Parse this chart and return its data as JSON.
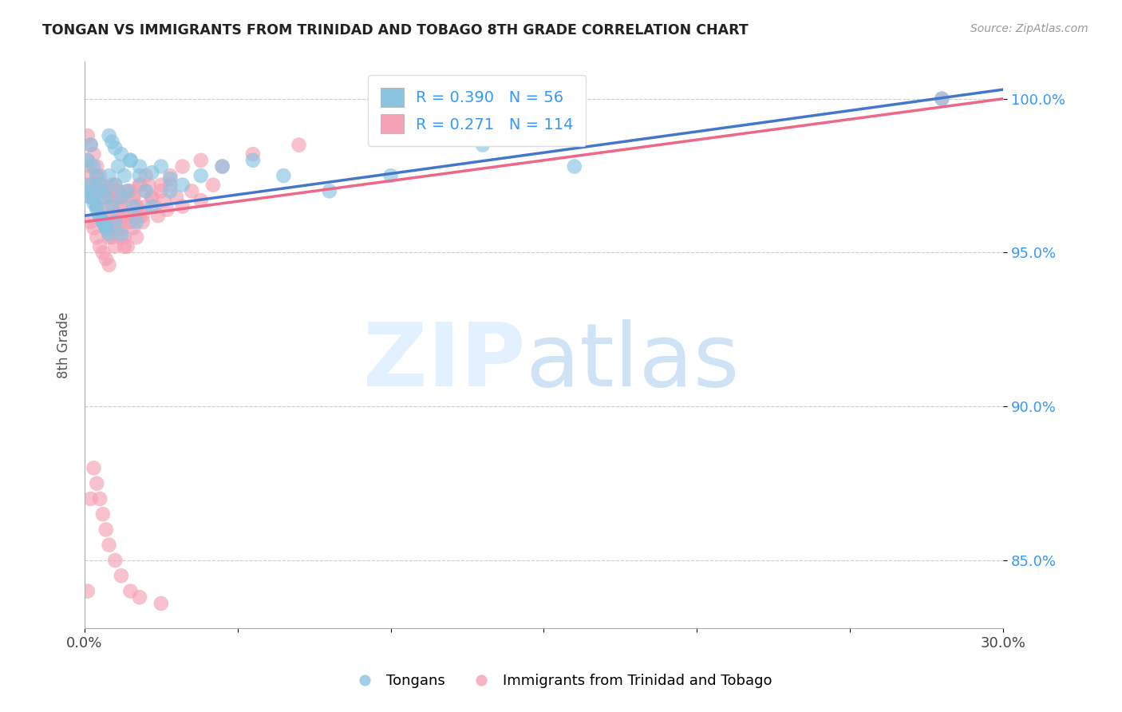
{
  "title": "TONGAN VS IMMIGRANTS FROM TRINIDAD AND TOBAGO 8TH GRADE CORRELATION CHART",
  "source": "Source: ZipAtlas.com",
  "ylabel": "8th Grade",
  "ytick_values": [
    0.85,
    0.9,
    0.95,
    1.0
  ],
  "xlim": [
    0.0,
    0.3
  ],
  "ylim": [
    0.828,
    1.012
  ],
  "blue_color": "#89c4e1",
  "pink_color": "#f4a0b5",
  "blue_line_color": "#4477cc",
  "pink_line_color": "#ee6688",
  "legend_R_blue": "0.390",
  "legend_N_blue": "56",
  "legend_R_pink": "0.271",
  "legend_N_pink": "114",
  "blue_x": [
    0.001,
    0.002,
    0.002,
    0.003,
    0.003,
    0.004,
    0.004,
    0.005,
    0.005,
    0.006,
    0.006,
    0.007,
    0.007,
    0.008,
    0.008,
    0.009,
    0.01,
    0.01,
    0.011,
    0.012,
    0.012,
    0.013,
    0.014,
    0.015,
    0.016,
    0.017,
    0.018,
    0.02,
    0.022,
    0.025,
    0.028,
    0.032,
    0.038,
    0.045,
    0.055,
    0.065,
    0.08,
    0.1,
    0.13,
    0.16,
    0.001,
    0.002,
    0.003,
    0.004,
    0.005,
    0.006,
    0.007,
    0.008,
    0.009,
    0.01,
    0.012,
    0.015,
    0.018,
    0.022,
    0.028,
    0.28
  ],
  "blue_y": [
    0.98,
    0.985,
    0.972,
    0.978,
    0.968,
    0.975,
    0.965,
    0.972,
    0.962,
    0.97,
    0.96,
    0.968,
    0.958,
    0.975,
    0.956,
    0.965,
    0.972,
    0.96,
    0.978,
    0.968,
    0.956,
    0.975,
    0.97,
    0.98,
    0.965,
    0.96,
    0.975,
    0.97,
    0.965,
    0.978,
    0.97,
    0.972,
    0.975,
    0.978,
    0.98,
    0.975,
    0.97,
    0.975,
    0.985,
    0.978,
    0.97,
    0.968,
    0.966,
    0.964,
    0.962,
    0.96,
    0.958,
    0.988,
    0.986,
    0.984,
    0.982,
    0.98,
    0.978,
    0.976,
    0.974,
    1.0
  ],
  "pink_x": [
    0.001,
    0.001,
    0.002,
    0.002,
    0.002,
    0.003,
    0.003,
    0.003,
    0.004,
    0.004,
    0.004,
    0.005,
    0.005,
    0.005,
    0.006,
    0.006,
    0.006,
    0.007,
    0.007,
    0.007,
    0.008,
    0.008,
    0.008,
    0.009,
    0.009,
    0.01,
    0.01,
    0.01,
    0.011,
    0.011,
    0.012,
    0.012,
    0.013,
    0.013,
    0.014,
    0.014,
    0.015,
    0.015,
    0.016,
    0.016,
    0.017,
    0.017,
    0.018,
    0.018,
    0.019,
    0.02,
    0.02,
    0.021,
    0.022,
    0.023,
    0.024,
    0.025,
    0.026,
    0.027,
    0.028,
    0.03,
    0.032,
    0.035,
    0.038,
    0.042,
    0.001,
    0.002,
    0.002,
    0.003,
    0.003,
    0.004,
    0.004,
    0.005,
    0.005,
    0.006,
    0.006,
    0.007,
    0.007,
    0.008,
    0.008,
    0.009,
    0.009,
    0.01,
    0.01,
    0.011,
    0.011,
    0.012,
    0.012,
    0.013,
    0.013,
    0.014,
    0.015,
    0.016,
    0.017,
    0.018,
    0.019,
    0.02,
    0.022,
    0.025,
    0.028,
    0.032,
    0.038,
    0.045,
    0.055,
    0.07,
    0.001,
    0.002,
    0.003,
    0.004,
    0.005,
    0.006,
    0.007,
    0.008,
    0.01,
    0.012,
    0.015,
    0.018,
    0.025,
    0.28
  ],
  "pink_y": [
    0.988,
    0.972,
    0.985,
    0.968,
    0.96,
    0.982,
    0.97,
    0.958,
    0.978,
    0.965,
    0.955,
    0.975,
    0.962,
    0.952,
    0.972,
    0.96,
    0.95,
    0.97,
    0.958,
    0.948,
    0.968,
    0.956,
    0.946,
    0.965,
    0.955,
    0.972,
    0.962,
    0.952,
    0.97,
    0.96,
    0.968,
    0.958,
    0.965,
    0.955,
    0.962,
    0.952,
    0.97,
    0.96,
    0.968,
    0.958,
    0.965,
    0.955,
    0.972,
    0.962,
    0.96,
    0.975,
    0.965,
    0.972,
    0.968,
    0.965,
    0.962,
    0.97,
    0.967,
    0.964,
    0.972,
    0.968,
    0.965,
    0.97,
    0.967,
    0.972,
    0.98,
    0.978,
    0.975,
    0.972,
    0.968,
    0.975,
    0.965,
    0.972,
    0.962,
    0.97,
    0.96,
    0.968,
    0.958,
    0.965,
    0.955,
    0.972,
    0.962,
    0.97,
    0.96,
    0.968,
    0.958,
    0.965,
    0.955,
    0.962,
    0.952,
    0.97,
    0.96,
    0.968,
    0.965,
    0.972,
    0.962,
    0.97,
    0.968,
    0.972,
    0.975,
    0.978,
    0.98,
    0.978,
    0.982,
    0.985,
    0.84,
    0.87,
    0.88,
    0.875,
    0.87,
    0.865,
    0.86,
    0.855,
    0.85,
    0.845,
    0.84,
    0.838,
    0.836,
    1.0
  ]
}
